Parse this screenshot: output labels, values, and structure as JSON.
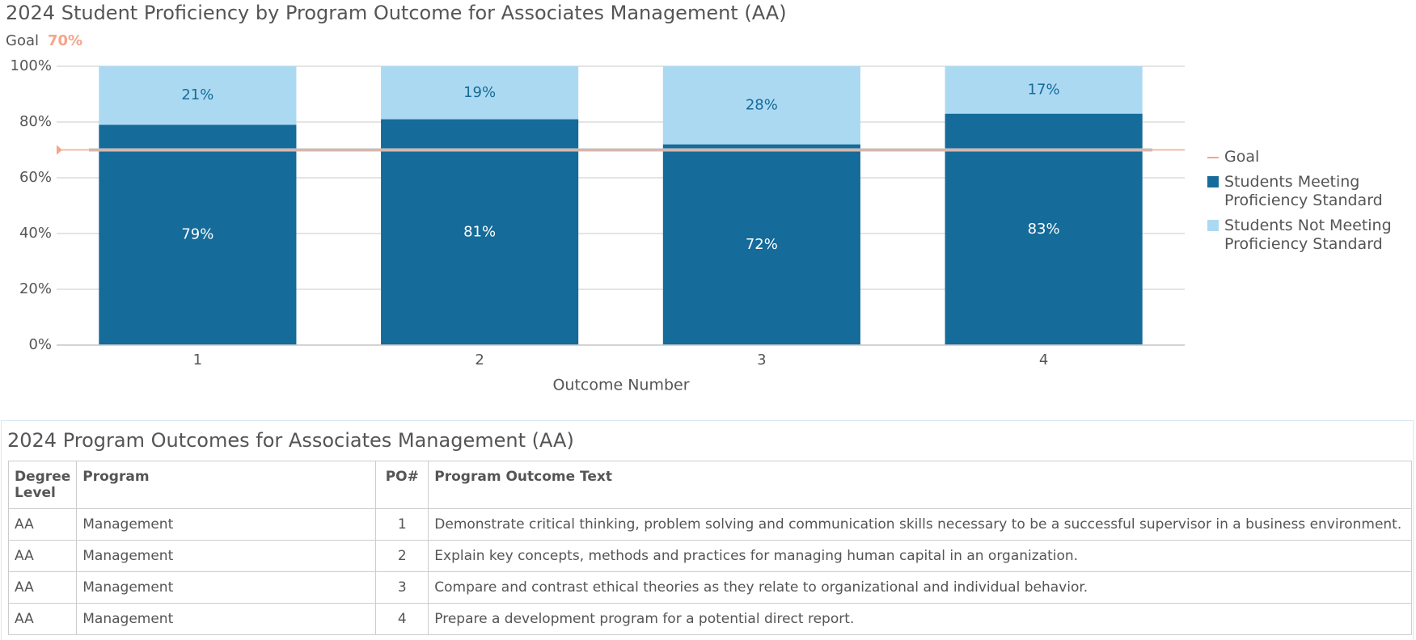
{
  "chart_data": {
    "type": "stacked_bar",
    "title": "2024 Student Proficiency by Program Outcome for Associates Management (AA)",
    "goal": {
      "name": "Goal",
      "value": 70,
      "label": "70%",
      "color": "#f4a58a"
    },
    "x_label": "Outcome Number",
    "categories": [
      "1",
      "2",
      "3",
      "4"
    ],
    "series": [
      {
        "name": "Students Meeting Proficiency Standard",
        "color": "#156b99",
        "values": [
          79,
          81,
          72,
          83
        ],
        "value_labels": [
          "79%",
          "81%",
          "72%",
          "83%"
        ]
      },
      {
        "name": "Students Not Meeting Proficiency Standard",
        "color": "#acd9f2",
        "values": [
          21,
          19,
          28,
          17
        ],
        "value_labels": [
          "21%",
          "19%",
          "28%",
          "17%"
        ]
      }
    ],
    "ylim": [
      0,
      100
    ],
    "yticks": [
      {
        "value": 0,
        "label": "0%"
      },
      {
        "value": 20,
        "label": "20%"
      },
      {
        "value": 40,
        "label": "40%"
      },
      {
        "value": 60,
        "label": "60%"
      },
      {
        "value": 80,
        "label": "80%"
      },
      {
        "value": 100,
        "label": "100%"
      }
    ],
    "grid": true
  },
  "table": {
    "title": "2024 Program Outcomes for Associates Management (AA)",
    "columns": [
      "Degree Level",
      "Program",
      "PO#",
      "Program Outcome Text"
    ],
    "rows": [
      [
        "AA",
        "Management",
        "1",
        "Demonstrate critical thinking, problem solving and communication skills necessary to be a successful supervisor in a business environment."
      ],
      [
        "AA",
        "Management",
        "2",
        "Explain key concepts, methods and practices for managing human capital in an organization."
      ],
      [
        "AA",
        "Management",
        "3",
        "Compare and contrast ethical theories as they relate to organizational and individual behavior."
      ],
      [
        "AA",
        "Management",
        "4",
        "Prepare a development program for a potential direct report."
      ]
    ]
  }
}
